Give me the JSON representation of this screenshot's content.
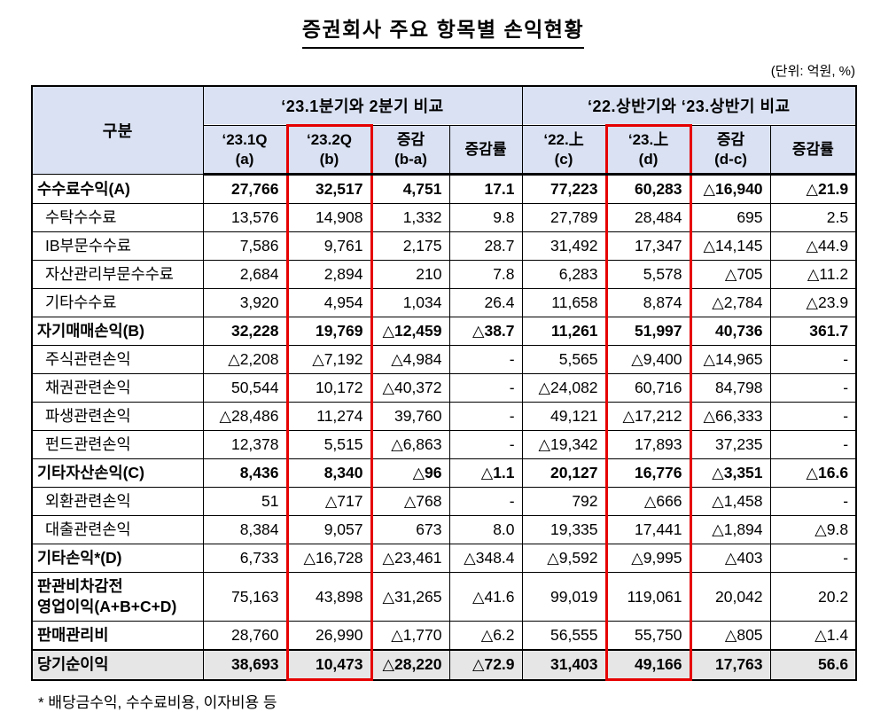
{
  "title": "증권회사 주요 항목별 손익현황",
  "unit_note": "(단위: 억원, %)",
  "footnote": "* 배당금수익, 수수료비용, 이자비용 등",
  "colors": {
    "header_bg": "#D9E1F2",
    "highlight_border": "#E60000",
    "total_row_bg": "#E7E6E6",
    "border": "#000000"
  },
  "table": {
    "category_header": "구분",
    "group_headers": [
      "‘23.1분기와 2분기 비교",
      "‘22.상반기와 ‘23.상반기 비교"
    ],
    "sub_headers": [
      "‘23.1Q\n(a)",
      "‘23.2Q\n(b)",
      "증감\n(b-a)",
      "증감률",
      "‘22.上\n(c)",
      "‘23.上\n(d)",
      "증감\n(d-c)",
      "증감률"
    ],
    "rows": [
      {
        "label": "수수료수익(A)",
        "bold": true,
        "values_bold": true,
        "indent": false,
        "gray": false,
        "values": [
          "27,766",
          "32,517",
          "4,751",
          "17.1",
          "77,223",
          "60,283",
          "△16,940",
          "△21.9"
        ]
      },
      {
        "label": "수탁수수료",
        "bold": false,
        "values_bold": false,
        "indent": true,
        "gray": false,
        "values": [
          "13,576",
          "14,908",
          "1,332",
          "9.8",
          "27,789",
          "28,484",
          "695",
          "2.5"
        ]
      },
      {
        "label": "IB부문수수료",
        "bold": false,
        "values_bold": false,
        "indent": true,
        "gray": false,
        "values": [
          "7,586",
          "9,761",
          "2,175",
          "28.7",
          "31,492",
          "17,347",
          "△14,145",
          "△44.9"
        ]
      },
      {
        "label": "자산관리부문수수료",
        "bold": false,
        "values_bold": false,
        "indent": true,
        "gray": false,
        "values": [
          "2,684",
          "2,894",
          "210",
          "7.8",
          "6,283",
          "5,578",
          "△705",
          "△11.2"
        ]
      },
      {
        "label": "기타수수료",
        "bold": false,
        "values_bold": false,
        "indent": true,
        "gray": false,
        "values": [
          "3,920",
          "4,954",
          "1,034",
          "26.4",
          "11,658",
          "8,874",
          "△2,784",
          "△23.9"
        ]
      },
      {
        "label": "자기매매손익(B)",
        "bold": true,
        "values_bold": true,
        "indent": false,
        "gray": false,
        "values": [
          "32,228",
          "19,769",
          "△12,459",
          "△38.7",
          "11,261",
          "51,997",
          "40,736",
          "361.7"
        ]
      },
      {
        "label": "주식관련손익",
        "bold": false,
        "values_bold": false,
        "indent": true,
        "gray": false,
        "values": [
          "△2,208",
          "△7,192",
          "△4,984",
          "-",
          "5,565",
          "△9,400",
          "△14,965",
          "-"
        ]
      },
      {
        "label": "채권관련손익",
        "bold": false,
        "values_bold": false,
        "indent": true,
        "gray": false,
        "values": [
          "50,544",
          "10,172",
          "△40,372",
          "-",
          "△24,082",
          "60,716",
          "84,798",
          "-"
        ]
      },
      {
        "label": "파생관련손익",
        "bold": false,
        "values_bold": false,
        "indent": true,
        "gray": false,
        "values": [
          "△28,486",
          "11,274",
          "39,760",
          "-",
          "49,121",
          "△17,212",
          "△66,333",
          "-"
        ]
      },
      {
        "label": "펀드관련손익",
        "bold": false,
        "values_bold": false,
        "indent": true,
        "gray": false,
        "values": [
          "12,378",
          "5,515",
          "△6,863",
          "-",
          "△19,342",
          "17,893",
          "37,235",
          "-"
        ]
      },
      {
        "label": "기타자산손익(C)",
        "bold": true,
        "values_bold": true,
        "indent": false,
        "gray": false,
        "values": [
          "8,436",
          "8,340",
          "△96",
          "△1.1",
          "20,127",
          "16,776",
          "△3,351",
          "△16.6"
        ]
      },
      {
        "label": "외환관련손익",
        "bold": false,
        "values_bold": false,
        "indent": true,
        "gray": false,
        "values": [
          "51",
          "△717",
          "△768",
          "-",
          "792",
          "△666",
          "△1,458",
          "-"
        ]
      },
      {
        "label": "대출관련손익",
        "bold": false,
        "values_bold": false,
        "indent": true,
        "gray": false,
        "values": [
          "8,384",
          "9,057",
          "673",
          "8.0",
          "19,335",
          "17,441",
          "△1,894",
          "△9.8"
        ]
      },
      {
        "label": "기타손익*(D)",
        "bold": true,
        "values_bold": false,
        "indent": false,
        "gray": false,
        "values": [
          "6,733",
          "△16,728",
          "△23,461",
          "△348.4",
          "△9,592",
          "△9,995",
          "△403",
          "-"
        ]
      },
      {
        "label": "판관비차감전\n영업이익(A+B+C+D)",
        "bold": true,
        "values_bold": false,
        "indent": false,
        "gray": false,
        "values": [
          "75,163",
          "43,898",
          "△31,265",
          "△41.6",
          "99,019",
          "119,061",
          "20,042",
          "20.2"
        ]
      },
      {
        "label": "판매관리비",
        "bold": true,
        "values_bold": false,
        "indent": false,
        "gray": false,
        "values": [
          "28,760",
          "26,990",
          "△1,770",
          "△6.2",
          "56,555",
          "55,750",
          "△805",
          "△1.4"
        ]
      },
      {
        "label": "당기순이익",
        "bold": true,
        "values_bold": true,
        "indent": false,
        "gray": true,
        "values": [
          "38,693",
          "10,473",
          "△28,220",
          "△72.9",
          "31,403",
          "49,166",
          "17,763",
          "56.6"
        ]
      }
    ]
  }
}
